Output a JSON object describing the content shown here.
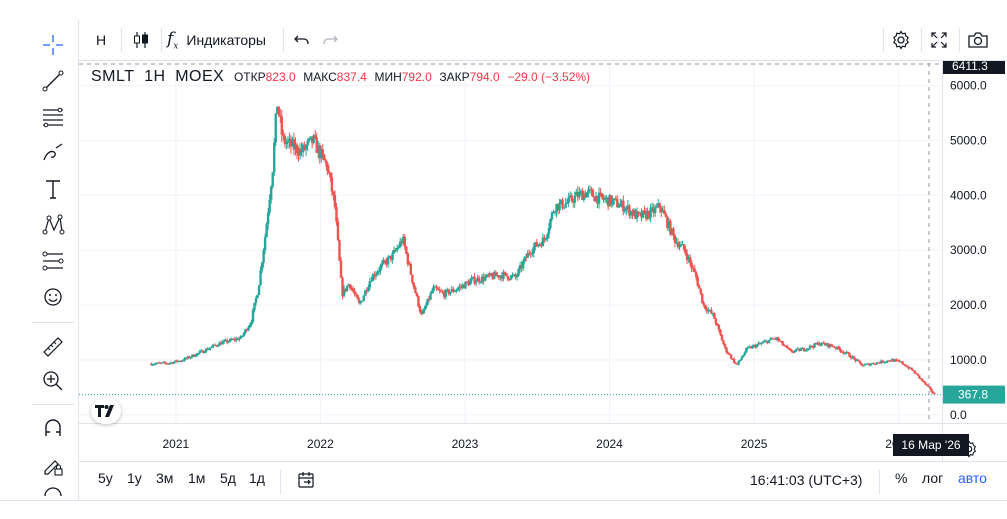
{
  "toolbar": {
    "interval": "Н",
    "indicators_label": "Индикаторы",
    "indicators_glyph": "f",
    "indicators_sub": "x"
  },
  "legend": {
    "symbol": "SMLT",
    "interval": "1Н",
    "exchange": "MOEX",
    "open_label": "ОТКР",
    "open_value": "823.0",
    "high_label": "МАКС",
    "high_value": "837.4",
    "low_label": "МИН",
    "low_value": "792.0",
    "close_label": "ЗАКР",
    "close_value": "794.0",
    "change": "−29.0 (−3.52%)"
  },
  "price_axis": {
    "crosshair_label": "6411.3",
    "last_price_label": "367.8",
    "last_price_color": "#26a69a",
    "up_color": "#26a69a",
    "down_color": "#ef5350"
  },
  "time_axis": {
    "crosshair_label": "16 Мар '26"
  },
  "ranges": [
    "5у",
    "1у",
    "3м",
    "1м",
    "5д",
    "1д"
  ],
  "bottom": {
    "time": "16:41:03 (UTC+3)",
    "percent": "%",
    "log": "лог",
    "auto": "авто"
  },
  "chart_data": {
    "type": "candlestick",
    "title": "SMLT · 1Н · MOEX",
    "y_ticks": [
      0,
      1000,
      2000,
      3000,
      4000,
      5000,
      6000
    ],
    "y_tick_labels": [
      "0.0",
      "1000.0",
      "2000.0",
      "3000.0",
      "4000.0",
      "5000.0",
      "6000.0"
    ],
    "x_tick_labels": [
      "2021",
      "2022",
      "2023",
      "2024",
      "2025",
      "2026"
    ],
    "x_ticks": [
      2021.0,
      2022.0,
      2023.0,
      2024.0,
      2025.0,
      2026.0
    ],
    "xlim": [
      2020.33,
      2026.3
    ],
    "ylim": [
      -150,
      6411.3
    ],
    "grid": true,
    "last_price": 367.8,
    "crosshair_price": 6411.3,
    "crosshair_x": 2026.21,
    "price_path": [
      [
        2020.83,
        930
      ],
      [
        2020.95,
        940
      ],
      [
        2021.05,
        1000
      ],
      [
        2021.18,
        1150
      ],
      [
        2021.3,
        1300
      ],
      [
        2021.45,
        1400
      ],
      [
        2021.52,
        1700
      ],
      [
        2021.57,
        2300
      ],
      [
        2021.62,
        3300
      ],
      [
        2021.67,
        4500
      ],
      [
        2021.7,
        5700
      ],
      [
        2021.74,
        5000
      ],
      [
        2021.8,
        4900
      ],
      [
        2021.87,
        4800
      ],
      [
        2021.95,
        5000
      ],
      [
        2022.05,
        4500
      ],
      [
        2022.1,
        3800
      ],
      [
        2022.15,
        2200
      ],
      [
        2022.2,
        2400
      ],
      [
        2022.27,
        2000
      ],
      [
        2022.35,
        2500
      ],
      [
        2022.42,
        2700
      ],
      [
        2022.5,
        2900
      ],
      [
        2022.57,
        3200
      ],
      [
        2022.65,
        2300
      ],
      [
        2022.7,
        1800
      ],
      [
        2022.78,
        2300
      ],
      [
        2022.85,
        2200
      ],
      [
        2022.95,
        2300
      ],
      [
        2023.05,
        2450
      ],
      [
        2023.15,
        2500
      ],
      [
        2023.25,
        2550
      ],
      [
        2023.35,
        2500
      ],
      [
        2023.45,
        3000
      ],
      [
        2023.55,
        3200
      ],
      [
        2023.62,
        3800
      ],
      [
        2023.7,
        3850
      ],
      [
        2023.78,
        4000
      ],
      [
        2023.85,
        4050
      ],
      [
        2023.92,
        3950
      ],
      [
        2024.0,
        3900
      ],
      [
        2024.1,
        3800
      ],
      [
        2024.2,
        3600
      ],
      [
        2024.3,
        3700
      ],
      [
        2024.35,
        3800
      ],
      [
        2024.45,
        3200
      ],
      [
        2024.52,
        3000
      ],
      [
        2024.6,
        2500
      ],
      [
        2024.65,
        2000
      ],
      [
        2024.72,
        1800
      ],
      [
        2024.8,
        1200
      ],
      [
        2024.88,
        900
      ],
      [
        2024.95,
        1200
      ],
      [
        2025.05,
        1300
      ],
      [
        2025.15,
        1400
      ],
      [
        2025.25,
        1150
      ],
      [
        2025.35,
        1200
      ],
      [
        2025.45,
        1300
      ],
      [
        2025.55,
        1250
      ],
      [
        2025.65,
        1100
      ],
      [
        2025.75,
        900
      ],
      [
        2025.85,
        950
      ],
      [
        2025.95,
        1000
      ],
      [
        2026.02,
        950
      ],
      [
        2026.1,
        800
      ],
      [
        2026.17,
        600
      ],
      [
        2026.22,
        450
      ],
      [
        2026.25,
        367.8
      ]
    ]
  }
}
